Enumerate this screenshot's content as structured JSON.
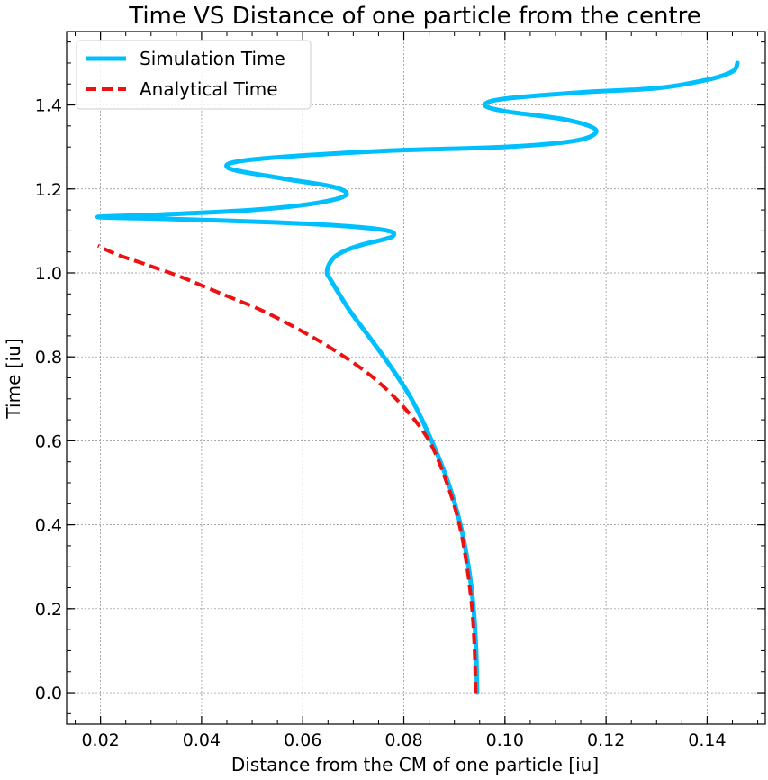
{
  "chart_data": {
    "type": "line",
    "title": "Time VS Distance of one particle from the centre",
    "xlabel": "Distance from the CM of one particle [iu]",
    "ylabel": "Time [iu]",
    "xlim": [
      0.0133,
      0.1515
    ],
    "ylim": [
      -0.075,
      1.575
    ],
    "xticks": [
      0.02,
      0.04,
      0.06,
      0.08,
      0.1,
      0.12,
      0.14
    ],
    "xtick_labels": [
      "0.02",
      "0.04",
      "0.06",
      "0.08",
      "0.10",
      "0.12",
      "0.14"
    ],
    "yticks": [
      0.0,
      0.2,
      0.4,
      0.6,
      0.8,
      1.0,
      1.2,
      1.4
    ],
    "ytick_labels": [
      "0.0",
      "0.2",
      "0.4",
      "0.6",
      "0.8",
      "1.0",
      "1.2",
      "1.4"
    ],
    "grid": true,
    "legend_position": "upper-left",
    "series": [
      {
        "name": "Simulation Time",
        "color": "#00BFFF",
        "style": "solid",
        "x": [
          0.0945,
          0.0943,
          0.0938,
          0.0928,
          0.0912,
          0.0888,
          0.0855,
          0.0815,
          0.0772,
          0.073,
          0.0693,
          0.0667,
          0.0652,
          0.0648,
          0.0652,
          0.0665,
          0.0688,
          0.072,
          0.0755,
          0.0779,
          0.077,
          0.07,
          0.055,
          0.035,
          0.0195,
          0.03,
          0.05,
          0.062,
          0.0685,
          0.066,
          0.056,
          0.0453,
          0.05,
          0.075,
          0.1,
          0.114,
          0.118,
          0.112,
          0.1,
          0.096,
          0.1,
          0.115,
          0.13,
          0.14,
          0.145,
          0.146
        ],
        "y": [
          0.0,
          0.1,
          0.2,
          0.3,
          0.4,
          0.5,
          0.6,
          0.7,
          0.78,
          0.85,
          0.91,
          0.96,
          0.99,
          1.0,
          1.02,
          1.04,
          1.055,
          1.068,
          1.078,
          1.088,
          1.1,
          1.11,
          1.12,
          1.128,
          1.133,
          1.138,
          1.15,
          1.165,
          1.185,
          1.205,
          1.225,
          1.25,
          1.27,
          1.29,
          1.3,
          1.315,
          1.34,
          1.365,
          1.385,
          1.4,
          1.415,
          1.43,
          1.44,
          1.46,
          1.48,
          1.5
        ]
      },
      {
        "name": "Analytical Time",
        "color": "#EE1111",
        "style": "dashed",
        "x": [
          0.0942,
          0.094,
          0.0935,
          0.0925,
          0.091,
          0.0885,
          0.085,
          0.08,
          0.074,
          0.067,
          0.06,
          0.052,
          0.044,
          0.036,
          0.029,
          0.023,
          0.0195
        ],
        "y": [
          0.0,
          0.1,
          0.2,
          0.3,
          0.4,
          0.5,
          0.6,
          0.68,
          0.75,
          0.81,
          0.86,
          0.91,
          0.95,
          0.99,
          1.02,
          1.045,
          1.065
        ]
      }
    ]
  }
}
